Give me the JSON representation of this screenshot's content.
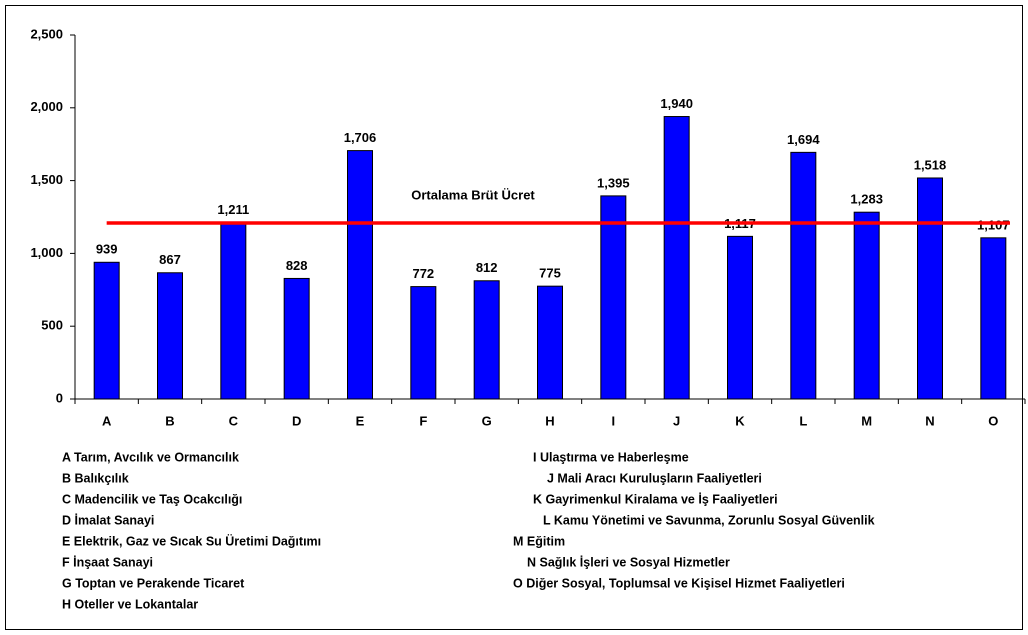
{
  "chart_data": {
    "type": "bar",
    "categories": [
      "A",
      "B",
      "C",
      "D",
      "E",
      "F",
      "G",
      "H",
      "I",
      "J",
      "K",
      "L",
      "M",
      "N",
      "O"
    ],
    "values": [
      939,
      867,
      1211,
      828,
      1706,
      772,
      812,
      775,
      1395,
      1940,
      1117,
      1694,
      1283,
      1518,
      1107
    ],
    "value_labels": [
      "939",
      "867",
      "1,211",
      "828",
      "1,706",
      "772",
      "812",
      "775",
      "1,395",
      "1,940",
      "1,117",
      "1,694",
      "1,283",
      "1,518",
      "1,107"
    ],
    "color": "#0000ff",
    "ylim": [
      0,
      2500
    ],
    "yticks": [
      0,
      500,
      {
        "value": 1000,
        "label": "1,000"
      },
      {
        "value": 1500,
        "label": "1,500"
      },
      {
        "value": 2000,
        "label": "2,000"
      },
      {
        "value": 2500,
        "label": "2,500"
      }
    ],
    "reference_line": {
      "value": 1209,
      "label": "Ortalama Brüt Ücret",
      "color": "#ff0000"
    },
    "legend_items": [
      "A Tarım, Avcılık ve Ormancılık",
      "B Balıkçılık",
      "C Madencilik ve Taş Ocakcılığı",
      "D İmalat Sanayi",
      "E Elektrik, Gaz ve Sıcak Su Üretimi Dağıtımı",
      "F İnşaat Sanayi",
      "G Toptan ve Perakende Ticaret",
      "H Oteller ve Lokantalar",
      "I Ulaştırma ve Haberleşme",
      "J Mali Aracı Kuruluşların Faaliyetleri",
      "K Gayrimenkul Kiralama ve İş Faaliyetleri",
      "L Kamu Yönetimi ve Savunma, Zorunlu Sosyal Güvenlik",
      "M Eğitim",
      "N Sağlık İşleri ve Sosyal Hizmetler",
      "O Diğer Sosyal, Toplumsal ve Kişisel Hizmet Faaliyetleri"
    ]
  }
}
